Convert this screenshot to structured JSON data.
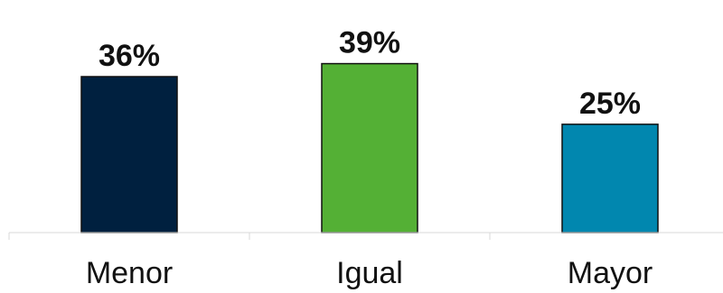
{
  "chart_data": {
    "type": "bar",
    "title": "",
    "xlabel": "",
    "ylabel": "",
    "categories": [
      "Menor",
      "Igual",
      "Mayor"
    ],
    "values": [
      36,
      39,
      25
    ],
    "data_labels": [
      "36%",
      "39%",
      "25%"
    ],
    "unit": "%",
    "colors": [
      "#00203f",
      "#54b035",
      "#0187af"
    ],
    "ylim": [
      0,
      45
    ],
    "grid": false,
    "legend": "none"
  }
}
